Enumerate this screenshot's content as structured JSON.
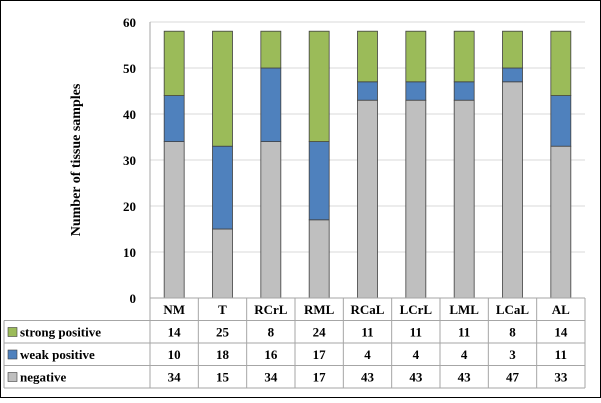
{
  "chart_data": {
    "type": "bar",
    "stacked": true,
    "title": "",
    "xlabel": "",
    "ylabel": "Number of tissue samples",
    "ylim": [
      0,
      60
    ],
    "yticks": [
      0,
      10,
      20,
      30,
      40,
      50,
      60
    ],
    "grid": true,
    "legend_placement": "data-table-left",
    "categories": [
      "NM",
      "T",
      "RCrL",
      "RML",
      "RCaL",
      "LCrL",
      "LML",
      "LCaL",
      "AL"
    ],
    "series": [
      {
        "name": "negative",
        "color": "#bfbfbf",
        "values": [
          34,
          15,
          34,
          17,
          43,
          43,
          43,
          47,
          33
        ]
      },
      {
        "name": "weak positive",
        "color": "#4f81bd",
        "values": [
          10,
          18,
          16,
          17,
          4,
          4,
          4,
          3,
          11
        ]
      },
      {
        "name": "strong positive",
        "color": "#9bbb59",
        "values": [
          14,
          25,
          8,
          24,
          11,
          11,
          11,
          8,
          14
        ]
      }
    ],
    "table_row_order": [
      "strong positive",
      "weak positive",
      "negative"
    ]
  }
}
